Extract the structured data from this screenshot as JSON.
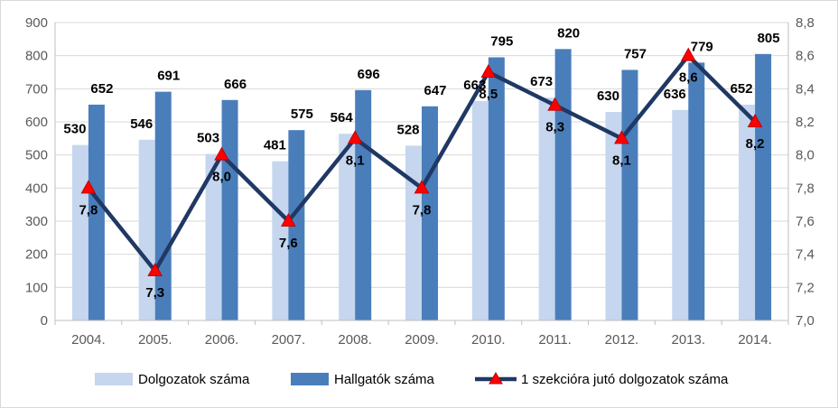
{
  "chart_data": {
    "type": "bar",
    "categories": [
      "2004.",
      "2005.",
      "2006.",
      "2007.",
      "2008.",
      "2009.",
      "2010.",
      "2011.",
      "2012.",
      "2013.",
      "2014."
    ],
    "series": [
      {
        "name": "Dolgozatok száma",
        "type": "bar",
        "axis": "left",
        "color": "#c5d6ee",
        "values": [
          530,
          546,
          503,
          481,
          564,
          528,
          663,
          673,
          630,
          636,
          652
        ],
        "labels": [
          "530",
          "546",
          "503",
          "481",
          "564",
          "528",
          "663",
          "673",
          "630",
          "636",
          "652"
        ]
      },
      {
        "name": "Hallgatók száma",
        "type": "bar",
        "axis": "right-of-pair",
        "color": "#4a7ebb",
        "values": [
          652,
          691,
          666,
          575,
          696,
          647,
          795,
          820,
          757,
          779,
          805
        ],
        "labels": [
          "652",
          "691",
          "666",
          "575",
          "696",
          "647",
          "795",
          "820",
          "757",
          "779",
          "805"
        ]
      },
      {
        "name": "1 szekcióra jutó dolgozatok száma",
        "type": "line",
        "axis": "secondary",
        "color": "#1f3864",
        "marker_color": "#ff0000",
        "values": [
          7.8,
          7.3,
          8.0,
          7.6,
          8.1,
          7.8,
          8.5,
          8.3,
          8.1,
          8.6,
          8.2
        ],
        "labels": [
          "7,8",
          "7,3",
          "8,0",
          "7,6",
          "8,1",
          "7,8",
          "8,5",
          "8,3",
          "8,1",
          "8,6",
          "8,2"
        ]
      }
    ],
    "y_left": {
      "min": 0,
      "max": 900,
      "step": 100,
      "ticks": [
        "0",
        "100",
        "200",
        "300",
        "400",
        "500",
        "600",
        "700",
        "800",
        "900"
      ]
    },
    "y_right": {
      "min": 7.0,
      "max": 8.8,
      "step": 0.2,
      "ticks": [
        "7,0",
        "7,2",
        "7,4",
        "7,6",
        "7,8",
        "8,0",
        "8,2",
        "8,4",
        "8,6",
        "8,8"
      ]
    },
    "grid": true,
    "legend": "bottom"
  }
}
